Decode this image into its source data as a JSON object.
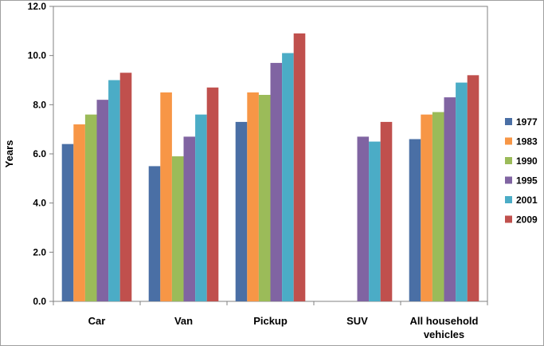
{
  "chart_data": {
    "type": "bar",
    "title": "",
    "xlabel": "",
    "ylabel": "Years",
    "ylim": [
      0,
      12
    ],
    "ytick_step": 2,
    "ytick_labels": [
      "0.0",
      "2.0",
      "4.0",
      "6.0",
      "8.0",
      "10.0",
      "12.0"
    ],
    "categories": [
      [
        "Car"
      ],
      [
        "Van"
      ],
      [
        "Pickup"
      ],
      [
        "SUV"
      ],
      [
        "All household",
        "vehicles"
      ]
    ],
    "series": [
      {
        "name": "1977",
        "color": "#4a6fa5",
        "values": [
          6.4,
          5.5,
          7.3,
          null,
          6.6
        ]
      },
      {
        "name": "1983",
        "color": "#f79646",
        "values": [
          7.2,
          8.5,
          8.5,
          null,
          7.6
        ]
      },
      {
        "name": "1990",
        "color": "#9bbb59",
        "values": [
          7.6,
          5.9,
          8.4,
          null,
          7.7
        ]
      },
      {
        "name": "1995",
        "color": "#8064a2",
        "values": [
          8.2,
          6.7,
          9.7,
          6.7,
          8.3
        ]
      },
      {
        "name": "2001",
        "color": "#4bacc6",
        "values": [
          9.0,
          7.6,
          10.1,
          6.5,
          8.9
        ]
      },
      {
        "name": "2009",
        "color": "#c0504d",
        "values": [
          9.3,
          8.7,
          10.9,
          7.3,
          9.2
        ]
      }
    ],
    "grid": false,
    "legend": "right"
  }
}
